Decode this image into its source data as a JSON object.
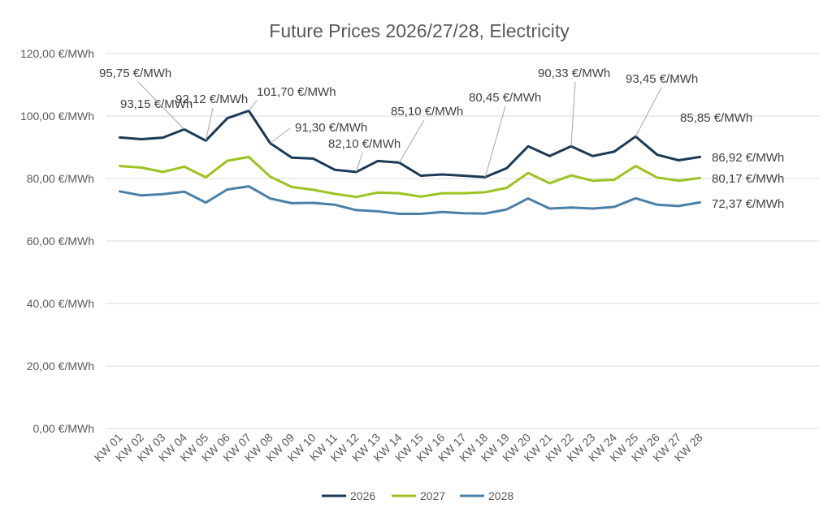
{
  "chart_data": {
    "type": "line",
    "title": "Future Prices 2026/27/28, Electricity",
    "xlabel": "",
    "ylabel": "",
    "ylim": [
      0,
      120
    ],
    "yticks": [
      0,
      20,
      40,
      60,
      80,
      100,
      120
    ],
    "ytick_labels": [
      "0,00 €/MWh",
      "20,00 €/MWh",
      "40,00 €/MWh",
      "60,00 €/MWh",
      "80,00 €/MWh",
      "100,00 €/MWh",
      "120,00 €/MWh"
    ],
    "grid": true,
    "legend_position": "bottom-center",
    "categories": [
      "KW 01",
      "KW 02",
      "KW 03",
      "KW 04",
      "KW 05",
      "KW 06",
      "KW 07",
      "KW 08",
      "KW 09",
      "KW 10",
      "KW 11",
      "KW 12",
      "KW 13",
      "KW 14",
      "KW 15",
      "KW 16",
      "KW 17",
      "KW 18",
      "KW 19",
      "KW 20",
      "KW 21",
      "KW 22",
      "KW 23",
      "KW 24",
      "KW 25",
      "KW 26",
      "KW 27",
      "KW 28"
    ],
    "series": [
      {
        "name": "2026",
        "color": "#1b3a57",
        "values": [
          93.15,
          92.6,
          93.1,
          95.75,
          92.12,
          99.3,
          101.7,
          91.3,
          86.7,
          86.4,
          82.8,
          82.1,
          85.6,
          85.1,
          80.9,
          81.3,
          80.9,
          80.45,
          83.3,
          90.3,
          87.2,
          90.33,
          87.2,
          88.6,
          93.45,
          87.6,
          85.85,
          86.92
        ]
      },
      {
        "name": "2027",
        "color": "#9cc31f",
        "values": [
          84.0,
          83.5,
          82.1,
          83.8,
          80.4,
          85.7,
          86.9,
          80.6,
          77.3,
          76.4,
          75.1,
          74.1,
          75.5,
          75.3,
          74.2,
          75.3,
          75.3,
          75.6,
          77.0,
          81.8,
          78.5,
          81.0,
          79.3,
          79.6,
          84.0,
          80.3,
          79.3,
          80.17
        ]
      },
      {
        "name": "2028",
        "color": "#4a80a8",
        "values": [
          75.9,
          74.6,
          75.0,
          75.8,
          72.3,
          76.5,
          77.5,
          73.6,
          72.1,
          72.2,
          71.6,
          69.9,
          69.5,
          68.7,
          68.7,
          69.3,
          68.9,
          68.8,
          70.1,
          73.6,
          70.4,
          70.7,
          70.4,
          70.9,
          73.7,
          71.6,
          71.2,
          72.37
        ]
      }
    ],
    "annotations": [
      {
        "series": 0,
        "index": 0,
        "text": "93,15 €/MWh"
      },
      {
        "series": 0,
        "index": 3,
        "text": "95,75 €/MWh"
      },
      {
        "series": 0,
        "index": 4,
        "text": "92,12 €/MWh"
      },
      {
        "series": 0,
        "index": 6,
        "text": "101,70 €/MWh"
      },
      {
        "series": 0,
        "index": 7,
        "text": "91,30 €/MWh"
      },
      {
        "series": 0,
        "index": 11,
        "text": "82,10 €/MWh"
      },
      {
        "series": 0,
        "index": 13,
        "text": "85,10 €/MWh"
      },
      {
        "series": 0,
        "index": 17,
        "text": "80,45 €/MWh"
      },
      {
        "series": 0,
        "index": 21,
        "text": "90,33 €/MWh"
      },
      {
        "series": 0,
        "index": 24,
        "text": "93,45 €/MWh"
      },
      {
        "series": 0,
        "index": 26,
        "text": "85,85 €/MWh"
      },
      {
        "series": 0,
        "index": 27,
        "text": "86,92 €/MWh"
      },
      {
        "series": 1,
        "index": 27,
        "text": "80,17 €/MWh"
      },
      {
        "series": 2,
        "index": 27,
        "text": "72,37 €/MWh"
      }
    ]
  }
}
